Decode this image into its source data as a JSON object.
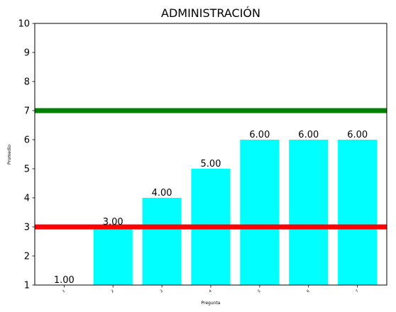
{
  "chart_data": {
    "type": "bar",
    "title": "ADMINISTRACIÓN",
    "xlabel": "Pregunta",
    "ylabel": "Promedio",
    "categories": [
      "1",
      "2",
      "3",
      "4",
      "5",
      "6",
      "7"
    ],
    "values": [
      1.0,
      3.0,
      4.0,
      5.0,
      6.0,
      6.0,
      6.0
    ],
    "data_labels": [
      "1.00",
      "3.00",
      "4.00",
      "5.00",
      "6.00",
      "6.00",
      "6.00"
    ],
    "ylim": [
      1,
      10
    ],
    "yticks": [
      "1",
      "2",
      "3",
      "4",
      "5",
      "6",
      "7",
      "8",
      "9",
      "10"
    ],
    "bar_color": "#00ffff",
    "reference_lines": [
      {
        "value": 7,
        "color": "#008000"
      },
      {
        "value": 3,
        "color": "#ff0000"
      }
    ],
    "grid": false,
    "legend": "none"
  }
}
